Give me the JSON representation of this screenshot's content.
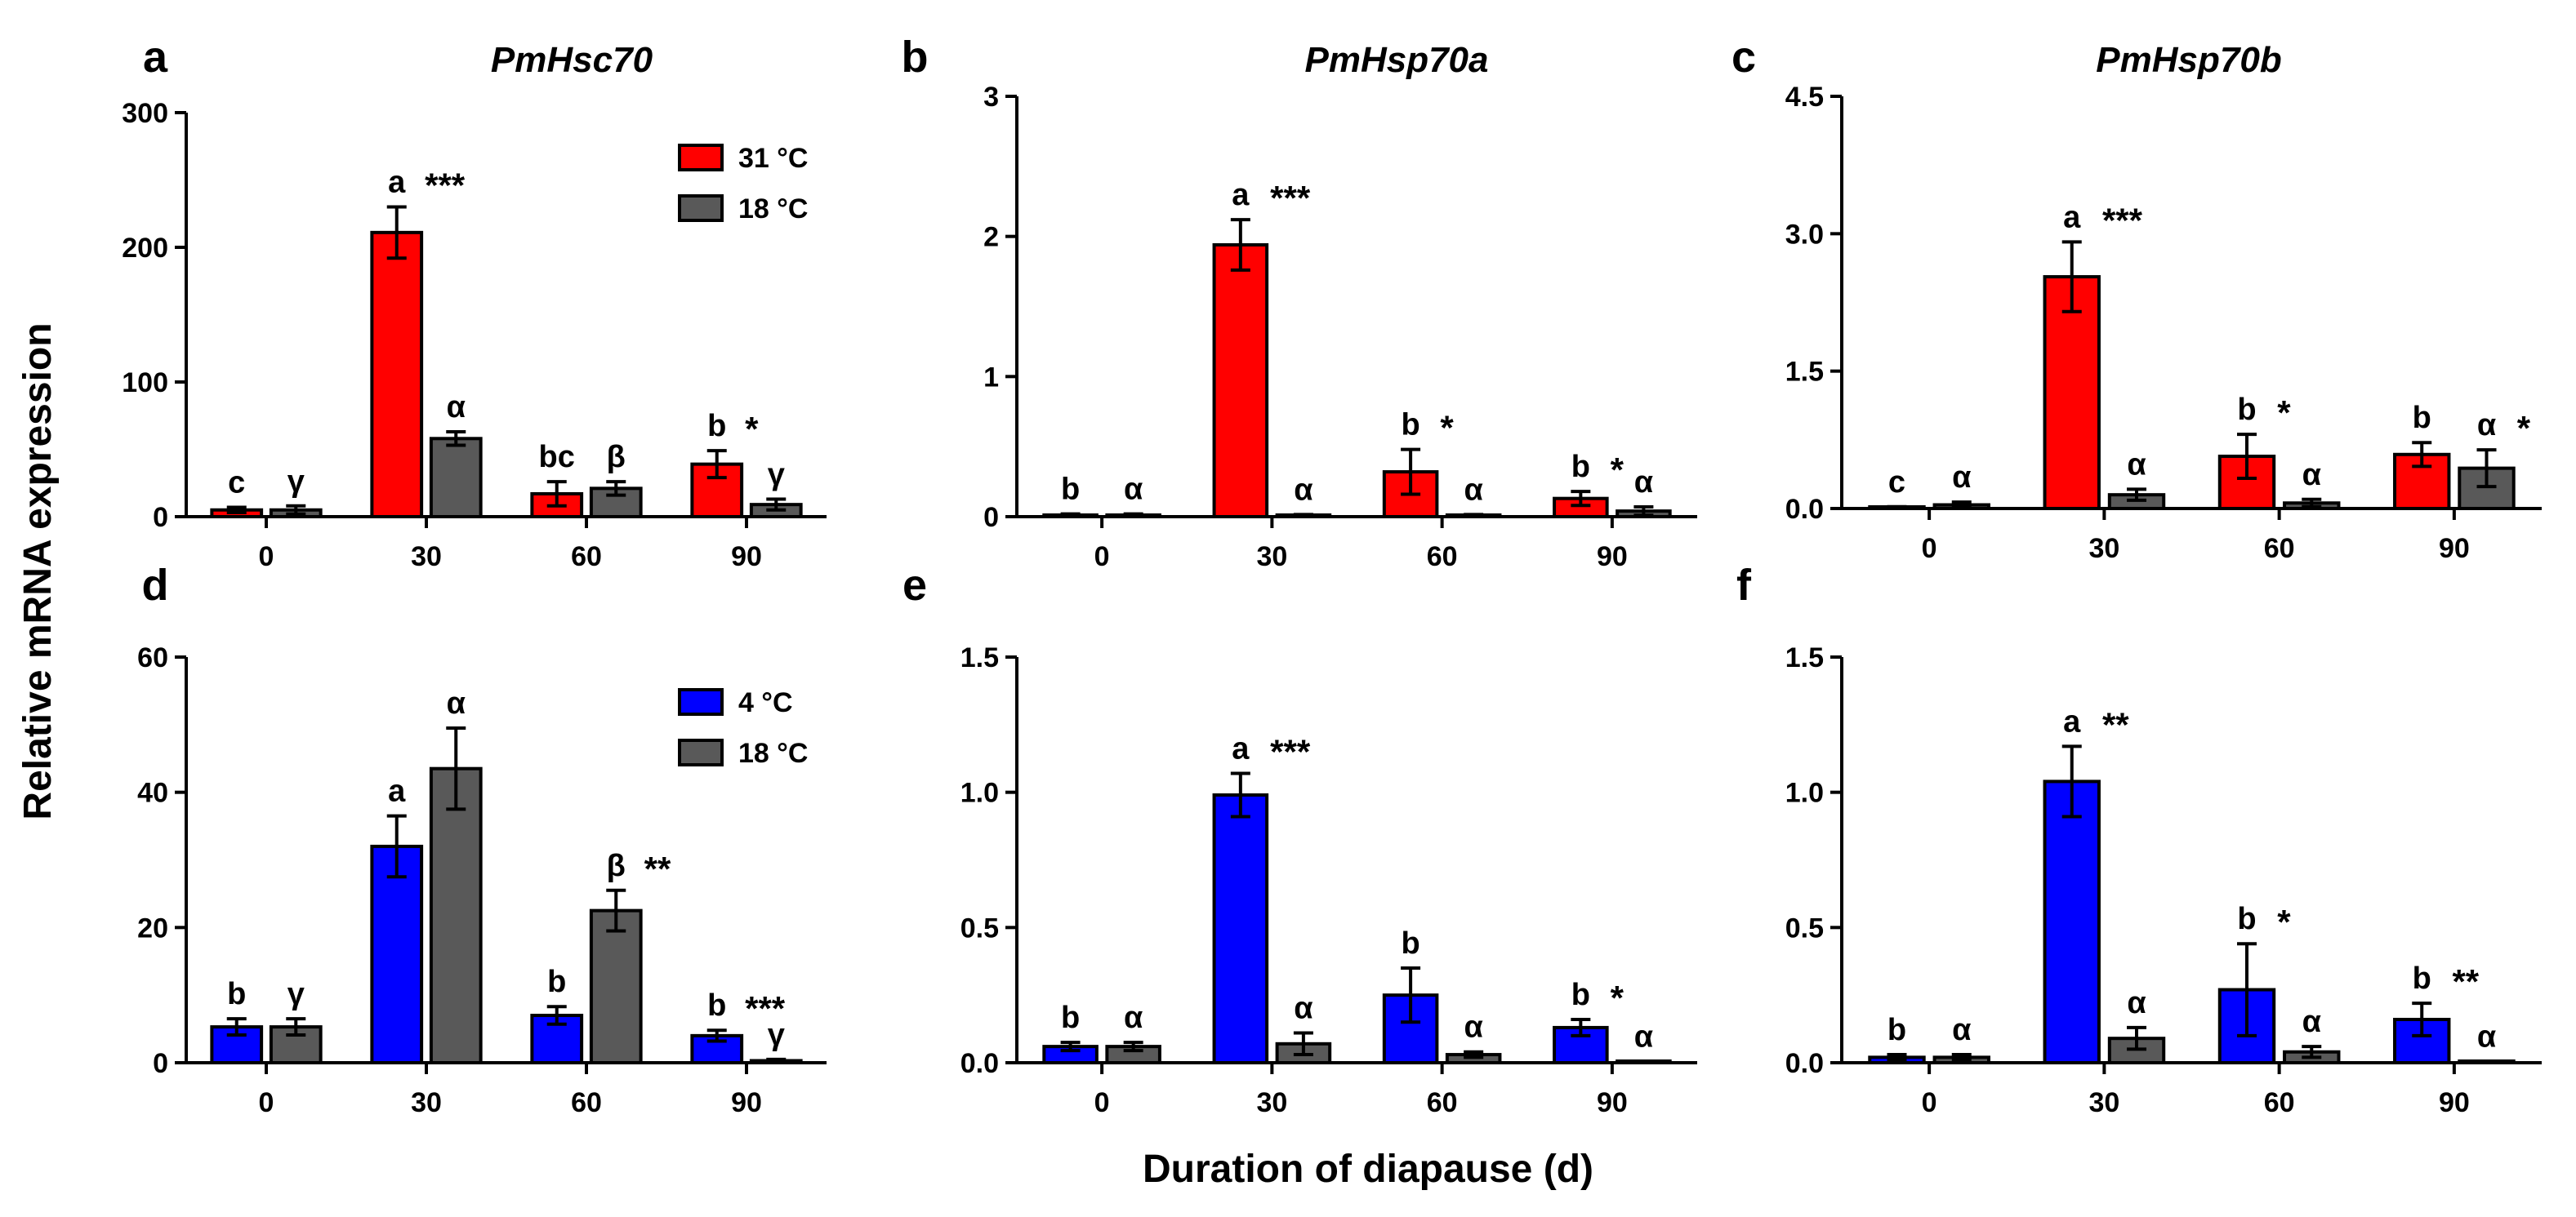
{
  "chart_data": {
    "shared": {
      "ylabel": "Relative mRNA expression",
      "xlabel": "Duration of diapause (d)"
    },
    "panels": [
      {
        "letter": "a",
        "title": "PmHsc70",
        "type": "bar",
        "categories": [
          "0",
          "30",
          "60",
          "90"
        ],
        "ylim": [
          0,
          300
        ],
        "yticks": [
          "0",
          "100",
          "200",
          "300"
        ],
        "legend": {
          "position": "top-right"
        },
        "series": [
          {
            "name": "31 °C",
            "color": "#ff0000",
            "values": [
              5,
              211,
              17,
              39
            ],
            "errors": [
              2,
              19,
              9,
              10
            ],
            "letters": [
              "c",
              "a",
              "bc",
              "b"
            ],
            "stars": [
              "",
              "***",
              "",
              "*"
            ]
          },
          {
            "name": "18 °C",
            "color": "#595959",
            "values": [
              5,
              58,
              21,
              9
            ],
            "errors": [
              3,
              5,
              5,
              4
            ],
            "letters": [
              "γ",
              "α",
              "β",
              "γ"
            ],
            "stars": [
              "",
              "",
              "",
              ""
            ]
          }
        ]
      },
      {
        "letter": "b",
        "title": "PmHsp70a",
        "type": "bar",
        "categories": [
          "0",
          "30",
          "60",
          "90"
        ],
        "ylim": [
          0,
          3
        ],
        "yticks": [
          "0",
          "1",
          "2",
          "3"
        ],
        "series": [
          {
            "name": "31 °C",
            "color": "#ff0000",
            "values": [
              0.01,
              1.94,
              0.32,
              0.13
            ],
            "errors": [
              0.01,
              0.18,
              0.16,
              0.05
            ],
            "letters": [
              "b",
              "a",
              "b",
              "b"
            ],
            "stars": [
              "",
              "***",
              "*",
              "*"
            ]
          },
          {
            "name": "18 °C",
            "color": "#595959",
            "values": [
              0.01,
              0.01,
              0.01,
              0.04
            ],
            "errors": [
              0.01,
              0.005,
              0.005,
              0.03
            ],
            "letters": [
              "α",
              "α",
              "α",
              "α"
            ],
            "stars": [
              "",
              "",
              "",
              ""
            ]
          }
        ]
      },
      {
        "letter": "c",
        "title": "PmHsp70b",
        "type": "bar",
        "categories": [
          "0",
          "30",
          "60",
          "90"
        ],
        "ylim": [
          0,
          4.5
        ],
        "yticks": [
          "0.0",
          "1.5",
          "3.0",
          "4.5"
        ],
        "series": [
          {
            "name": "31 °C",
            "color": "#ff0000",
            "values": [
              0.01,
              2.53,
              0.57,
              0.59
            ],
            "errors": [
              0.01,
              0.38,
              0.24,
              0.13
            ],
            "letters": [
              "c",
              "a",
              "b",
              "b"
            ],
            "stars": [
              "",
              "***",
              "*",
              ""
            ]
          },
          {
            "name": "18 °C",
            "color": "#595959",
            "values": [
              0.04,
              0.15,
              0.06,
              0.44
            ],
            "errors": [
              0.03,
              0.06,
              0.04,
              0.2
            ],
            "letters": [
              "α",
              "α",
              "α",
              "α"
            ],
            "stars": [
              "",
              "",
              "",
              "*"
            ]
          }
        ]
      },
      {
        "letter": "d",
        "title": "",
        "type": "bar",
        "categories": [
          "0",
          "30",
          "60",
          "90"
        ],
        "ylim": [
          0,
          60
        ],
        "yticks": [
          "0",
          "20",
          "40",
          "60"
        ],
        "legend": {
          "position": "top-right"
        },
        "series": [
          {
            "name": "4 °C",
            "color": "#0000ff",
            "values": [
              5.3,
              32,
              7,
              4
            ],
            "errors": [
              1.2,
              4.5,
              1.3,
              0.8
            ],
            "letters": [
              "b",
              "a",
              "b",
              "b"
            ],
            "stars": [
              "",
              "",
              "",
              "***"
            ]
          },
          {
            "name": "18 °C",
            "color": "#595959",
            "values": [
              5.3,
              43.5,
              22.5,
              0.3
            ],
            "errors": [
              1.2,
              6,
              3,
              0.2
            ],
            "letters": [
              "γ",
              "α",
              "β",
              "γ"
            ],
            "stars": [
              "",
              "",
              "**",
              ""
            ]
          }
        ]
      },
      {
        "letter": "e",
        "title": "",
        "type": "bar",
        "categories": [
          "0",
          "30",
          "60",
          "90"
        ],
        "ylim": [
          0,
          1.5
        ],
        "yticks": [
          "0.0",
          "0.5",
          "1.0",
          "1.5"
        ],
        "series": [
          {
            "name": "4 °C",
            "color": "#0000ff",
            "values": [
              0.06,
              0.99,
              0.25,
              0.13
            ],
            "errors": [
              0.015,
              0.08,
              0.1,
              0.03
            ],
            "letters": [
              "b",
              "a",
              "b",
              "b"
            ],
            "stars": [
              "",
              "***",
              "",
              "*"
            ]
          },
          {
            "name": "18 °C",
            "color": "#595959",
            "values": [
              0.06,
              0.07,
              0.03,
              0.003
            ],
            "errors": [
              0.015,
              0.04,
              0.01,
              0.002
            ],
            "letters": [
              "α",
              "α",
              "α",
              "α"
            ],
            "stars": [
              "",
              "",
              "",
              ""
            ]
          }
        ]
      },
      {
        "letter": "f",
        "title": "",
        "type": "bar",
        "categories": [
          "0",
          "30",
          "60",
          "90"
        ],
        "ylim": [
          0,
          1.5
        ],
        "yticks": [
          "0.0",
          "0.5",
          "1.0",
          "1.5"
        ],
        "series": [
          {
            "name": "4 °C",
            "color": "#0000ff",
            "values": [
              0.02,
              1.04,
              0.27,
              0.16
            ],
            "errors": [
              0.01,
              0.13,
              0.17,
              0.06
            ],
            "letters": [
              "b",
              "a",
              "b",
              "b"
            ],
            "stars": [
              "",
              "**",
              "*",
              "**"
            ]
          },
          {
            "name": "18 °C",
            "color": "#595959",
            "values": [
              0.02,
              0.09,
              0.04,
              0.003
            ],
            "errors": [
              0.01,
              0.04,
              0.02,
              0.002
            ],
            "letters": [
              "α",
              "α",
              "α",
              "α"
            ],
            "stars": [
              "",
              "",
              "",
              ""
            ]
          }
        ]
      }
    ]
  }
}
